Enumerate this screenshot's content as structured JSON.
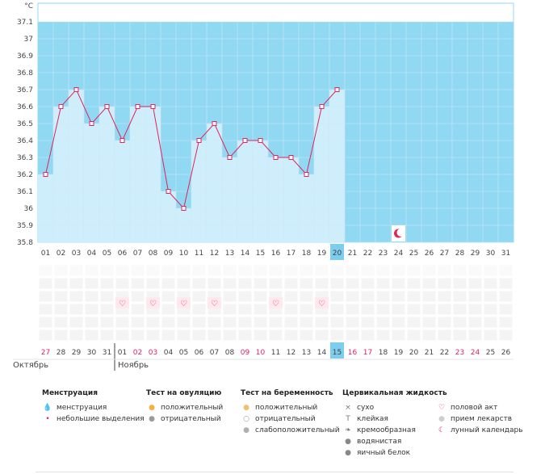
{
  "chart_data": {
    "type": "line",
    "y_unit_label": "°C",
    "ylim": [
      35.8,
      37.1
    ],
    "y_ticks": [
      "35.8",
      "35.9",
      "36",
      "36.1",
      "36.2",
      "36.3",
      "36.4",
      "36.5",
      "36.6",
      "36.7",
      "36.8",
      "36.9",
      "37",
      "37.1"
    ],
    "cycle_days": [
      "01",
      "02",
      "03",
      "04",
      "05",
      "06",
      "07",
      "08",
      "09",
      "10",
      "11",
      "12",
      "13",
      "14",
      "15",
      "16",
      "17",
      "18",
      "19",
      "20",
      "21",
      "22",
      "23",
      "24",
      "25",
      "26",
      "27",
      "28",
      "29",
      "30",
      "31"
    ],
    "highlight_cycle_day": "20",
    "temperatures": [
      36.2,
      36.6,
      36.7,
      36.5,
      36.6,
      36.4,
      36.6,
      36.6,
      36.1,
      36.0,
      36.4,
      36.5,
      36.3,
      36.4,
      36.4,
      36.3,
      36.3,
      36.2,
      36.6,
      36.7
    ],
    "sex_days": [
      "06",
      "08",
      "10",
      "12",
      "16",
      "19"
    ],
    "moon_day": "24",
    "calendar_dates": [
      "27",
      "28",
      "29",
      "30",
      "31",
      "01",
      "02",
      "03",
      "04",
      "05",
      "06",
      "07",
      "08",
      "09",
      "10",
      "11",
      "12",
      "13",
      "14",
      "15",
      "16",
      "17",
      "18",
      "19",
      "20",
      "21",
      "22",
      "23",
      "24",
      "25",
      "26"
    ],
    "calendar_red_indices": [
      0,
      6,
      7,
      13,
      14,
      20,
      21,
      27,
      28
    ],
    "today_index": 19,
    "months": {
      "previous": "Октябрь",
      "current": "Ноябрь"
    },
    "month_boundary_index": 5
  },
  "colors": {
    "fill_region": "#91d8f3",
    "bar": "#cdeefa",
    "line": "#e0245e",
    "highlight": "#7ccdee",
    "grid": "#cfeaf6"
  },
  "legend": [
    {
      "title": "Менструация",
      "items": [
        {
          "icon": "drop-icon",
          "label": "менструация"
        },
        {
          "icon": "small-drop-icon",
          "label": "небольшие выделения"
        }
      ]
    },
    {
      "title": "Тест на овуляцию",
      "items": [
        {
          "icon": "orange-circle-icon",
          "label": "положительный"
        },
        {
          "icon": "grey-circle-icon",
          "label": "отрицательный"
        }
      ]
    },
    {
      "title": "Тест на беременность",
      "items": [
        {
          "icon": "orange-disc-icon",
          "label": "положительный"
        },
        {
          "icon": "white-disc-icon",
          "label": "отрицательный"
        },
        {
          "icon": "grey-disc-icon",
          "label": "слабоположительный"
        }
      ]
    },
    {
      "title": "Цервикальная жидкость",
      "items": [
        {
          "icon": "cross-icon",
          "label": "сухо"
        },
        {
          "icon": "t-icon",
          "label": "клейкая"
        },
        {
          "icon": "swirl-icon",
          "label": "кремообразная"
        },
        {
          "icon": "droplet-grey-icon",
          "label": "водянистая"
        },
        {
          "icon": "egg-icon",
          "label": "яичный белок"
        }
      ]
    },
    {
      "title": "",
      "items": [
        {
          "icon": "heart-icon",
          "label": "половой акт"
        },
        {
          "icon": "pill-icon",
          "label": "прием лекарств"
        },
        {
          "icon": "moon-icon",
          "label": "лунный календарь"
        }
      ]
    }
  ]
}
